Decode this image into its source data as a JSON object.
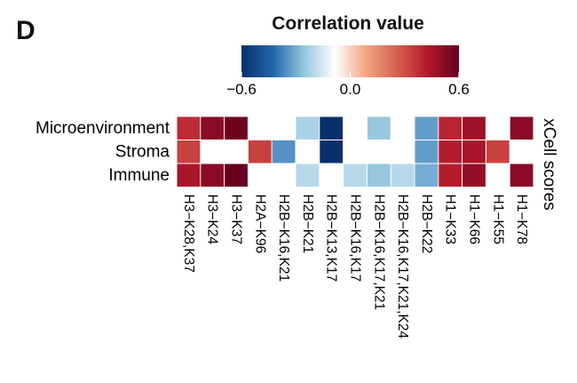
{
  "panel_letter": "D",
  "chart_data": {
    "type": "heatmap",
    "legend": {
      "title": "Correlation value",
      "min": -0.6,
      "max": 0.6,
      "ticks": [
        "−0.6",
        "0.0",
        "0.6"
      ],
      "colors": [
        "#08306b",
        "#2166ac",
        "#92c5de",
        "#ffffff",
        "#f4a582",
        "#d6604d",
        "#b2182b",
        "#67001f"
      ]
    },
    "side_label": "xCell scores",
    "rows": [
      "Microenvironment",
      "Stroma",
      "Immune"
    ],
    "columns": [
      "H3−K28,K37",
      "H3−K24",
      "H3−K37",
      "H2A−K96",
      "H2B−K16,K21",
      "H2B−K21",
      "H2B−K13,K17",
      "H2B−K16,K17",
      "H2B−K16,K17,K21",
      "H2B−K16,K17,K21,K24",
      "H2B−K22",
      "H1−K33",
      "H1−K66",
      "H1−K55",
      "H1−K78"
    ],
    "values": [
      [
        0.38,
        0.52,
        0.58,
        null,
        null,
        -0.22,
        -0.6,
        null,
        -0.25,
        null,
        -0.33,
        0.4,
        0.48,
        null,
        0.52
      ],
      [
        0.33,
        null,
        null,
        0.33,
        -0.35,
        null,
        -0.62,
        null,
        null,
        null,
        -0.33,
        0.42,
        0.45,
        0.33,
        null
      ],
      [
        0.45,
        0.52,
        0.62,
        null,
        null,
        -0.2,
        null,
        -0.2,
        -0.25,
        -0.2,
        -0.3,
        0.42,
        0.5,
        null,
        0.52
      ]
    ]
  }
}
